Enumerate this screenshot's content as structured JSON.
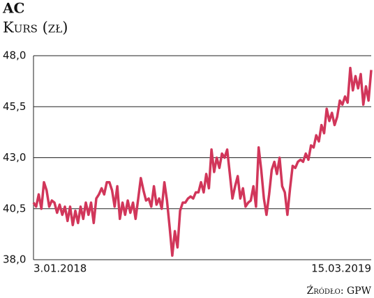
{
  "chart_data": {
    "type": "line",
    "title": "AC",
    "subtitle": "Kurs (zł)",
    "source": "Źródło: GPW",
    "categories": [
      "3.01.2018",
      null,
      null,
      null,
      null,
      null,
      null,
      null,
      null,
      null,
      null,
      null,
      null,
      null,
      null,
      null,
      null,
      null,
      null,
      null,
      null,
      null,
      null,
      null,
      null,
      null,
      null,
      null,
      null,
      null,
      null,
      null,
      null,
      null,
      null,
      null,
      null,
      null,
      null,
      null,
      null,
      null,
      null,
      null,
      null,
      null,
      null,
      null,
      null,
      null,
      null,
      null,
      null,
      null,
      null,
      null,
      null,
      null,
      null,
      null,
      null,
      null,
      null,
      null,
      null,
      null,
      null,
      null,
      null,
      null,
      null,
      null,
      null,
      null,
      null,
      null,
      null,
      null,
      null,
      null,
      null,
      null,
      null,
      null,
      null,
      null,
      null,
      null,
      null,
      null,
      null,
      null,
      null,
      null,
      null,
      null,
      null,
      null,
      null,
      null,
      null,
      null,
      null,
      null,
      null,
      null,
      null,
      null,
      null,
      null,
      null,
      null,
      null,
      null,
      null,
      null,
      null,
      null,
      null,
      null,
      null,
      null,
      null,
      null,
      null,
      null,
      null,
      null,
      null,
      "15.03.2019"
    ],
    "series": [
      {
        "name": "AC",
        "color": "#d1365a",
        "values": [
          40.8,
          40.6,
          41.2,
          40.5,
          41.8,
          41.4,
          40.6,
          40.9,
          40.8,
          40.3,
          40.7,
          40.2,
          40.6,
          39.9,
          40.6,
          39.7,
          40.4,
          39.8,
          40.6,
          40.0,
          40.8,
          40.2,
          40.8,
          39.8,
          41.0,
          41.2,
          41.5,
          41.2,
          41.8,
          41.8,
          41.4,
          40.6,
          41.6,
          40.0,
          40.8,
          40.2,
          40.9,
          40.3,
          40.8,
          40.0,
          41.0,
          42.0,
          41.4,
          40.9,
          41.0,
          40.6,
          41.6,
          40.7,
          41.0,
          40.5,
          41.8,
          40.9,
          39.6,
          38.2,
          39.4,
          38.6,
          40.4,
          40.8,
          40.8,
          41.0,
          41.1,
          41.0,
          41.3,
          41.3,
          41.8,
          41.3,
          42.2,
          41.5,
          43.4,
          42.3,
          43.0,
          42.5,
          43.2,
          43.0,
          43.4,
          42.2,
          41.0,
          41.6,
          42.1,
          41.0,
          41.5,
          40.6,
          40.8,
          40.9,
          41.6,
          40.6,
          43.5,
          42.4,
          41.0,
          40.2,
          41.2,
          42.4,
          42.8,
          42.2,
          43.0,
          41.6,
          41.3,
          40.2,
          41.5,
          42.6,
          42.5,
          42.8,
          42.9,
          42.8,
          43.2,
          42.9,
          43.6,
          43.5,
          44.1,
          43.8,
          44.6,
          44.2,
          45.4,
          44.8,
          45.2,
          44.6,
          45.0,
          45.8,
          45.6,
          46.0,
          45.7,
          47.4,
          46.3,
          47.0,
          46.4,
          47.1,
          45.6,
          46.5,
          45.8,
          47.3
        ]
      }
    ],
    "ylim": [
      38,
      48
    ],
    "yticks": [
      {
        "value": 38,
        "label": "38,0"
      },
      {
        "value": 40.5,
        "label": "40,5"
      },
      {
        "value": 43,
        "label": "43,0"
      },
      {
        "value": 45.5,
        "label": "45,5"
      },
      {
        "value": 48,
        "label": "48,0"
      }
    ],
    "grid": true
  }
}
